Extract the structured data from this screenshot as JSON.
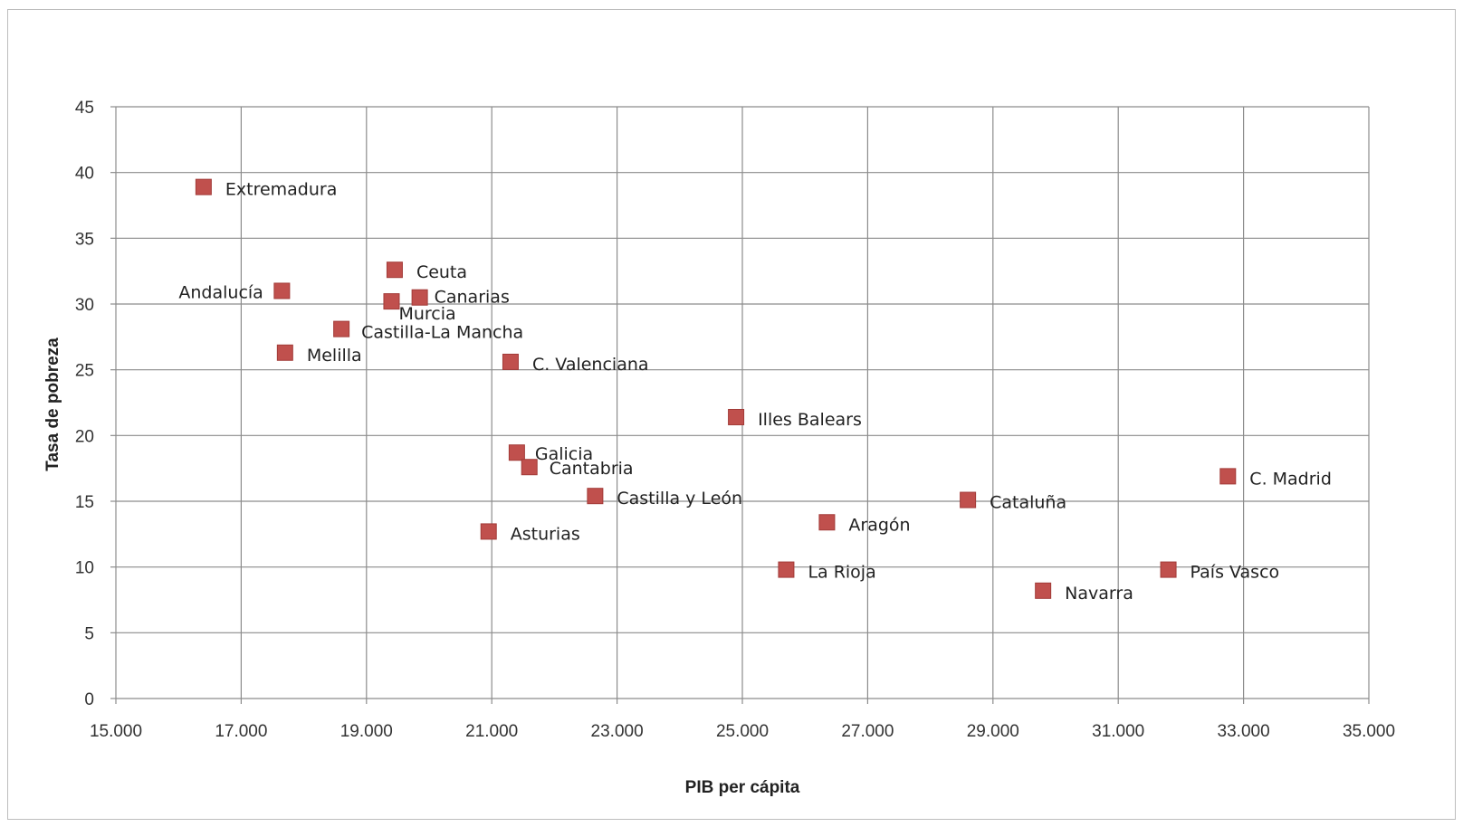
{
  "chart_data": {
    "type": "scatter",
    "xlabel": "PIB per cápita",
    "ylabel": "Tasa de pobreza",
    "xlim": [
      15000,
      35000
    ],
    "ylim": [
      0,
      45
    ],
    "x_ticks": [
      "15.000",
      "17.000",
      "19.000",
      "21.000",
      "23.000",
      "25.000",
      "27.000",
      "29.000",
      "31.000",
      "33.000",
      "35.000"
    ],
    "y_ticks": [
      "0",
      "5",
      "10",
      "15",
      "20",
      "25",
      "30",
      "35",
      "40",
      "45"
    ],
    "grid": true,
    "marker_color": "#c0504d",
    "highlight_color": "#ff0000",
    "points": [
      {
        "label": "Extremadura",
        "x": 16400,
        "y": 38.9
      },
      {
        "label": "Andalucía",
        "x": 17650,
        "y": 31.0
      },
      {
        "label": "Ceuta",
        "x": 19450,
        "y": 32.6
      },
      {
        "label": "Canarias",
        "x": 19850,
        "y": 30.5
      },
      {
        "label": "Murcia",
        "x": 19400,
        "y": 30.2
      },
      {
        "label": "Castilla-La Mancha",
        "x": 18600,
        "y": 28.1
      },
      {
        "label": "Melilla",
        "x": 17700,
        "y": 26.3
      },
      {
        "label": "C. Valenciana",
        "x": 21300,
        "y": 25.6
      },
      {
        "label": "Illes Balears",
        "x": 24900,
        "y": 21.4
      },
      {
        "label": "Galicia",
        "x": 21400,
        "y": 18.7
      },
      {
        "label": "Cantabria",
        "x": 21600,
        "y": 17.6
      },
      {
        "label": "Castilla y León",
        "x": 22650,
        "y": 15.4
      },
      {
        "label": "C. Madrid",
        "x": 32750,
        "y": 16.9
      },
      {
        "label": "Cataluña",
        "x": 28600,
        "y": 15.1
      },
      {
        "label": "Aragón",
        "x": 26350,
        "y": 13.4
      },
      {
        "label": "Asturias",
        "x": 20950,
        "y": 12.7
      },
      {
        "label": "La Rioja",
        "x": 25700,
        "y": 9.8
      },
      {
        "label": "País Vasco",
        "x": 31800,
        "y": 9.8
      },
      {
        "label": "Navarra",
        "x": 29800,
        "y": 8.2,
        "highlight": true
      }
    ]
  }
}
